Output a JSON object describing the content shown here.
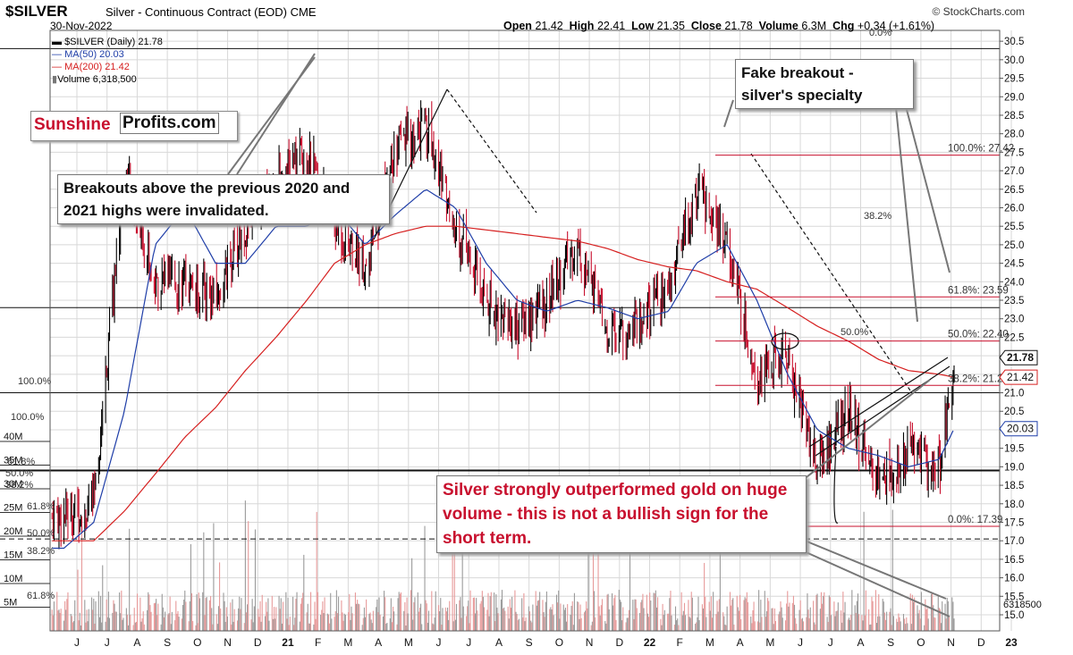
{
  "header": {
    "symbol": "$SILVER",
    "description": "Silver - Continuous Contract (EOD) CME",
    "date": "30-Nov-2022",
    "open_label": "Open",
    "open": "21.42",
    "high_label": "High",
    "high": "22.41",
    "low_label": "Low",
    "low": "21.35",
    "close_label": "Close",
    "close": "21.78",
    "volume_label": "Volume",
    "volume": "6.3M",
    "chg_label": "Chg",
    "chg": "+0.34 (+1.61%)",
    "copyright": "© StockCharts.com"
  },
  "legend": {
    "price": "$SILVER (Daily) 21.78",
    "ma50": "MA(50) 20.03",
    "ma200": "MA(200) 21.42",
    "volume": "Volume 6,318,500"
  },
  "logo": {
    "part1": "Sunshine",
    "part2": "Profits.com"
  },
  "annotations": {
    "breakouts": "Breakouts above the previous 2020 and 2021 highs were invalidated.",
    "fake_breakout": "Fake breakout - silver's specialty",
    "outperformed": "Silver strongly outperformed gold on huge volume - this is not a bullish sign for the short term."
  },
  "colors": {
    "price_up": "#000000",
    "price_down": "#c8102e",
    "ma50": "#1f3ea8",
    "ma200": "#d62020",
    "volume_up": "#9a9a9a",
    "volume_down": "#e79a9a",
    "fib_line": "#c8102e",
    "grid": "#d8d8d8"
  },
  "chart_data": {
    "type": "line",
    "title": "$SILVER Silver - Continuous Contract (EOD) CME",
    "y_right_ticks": [
      "30.5",
      "30.0",
      "29.5",
      "29.0",
      "28.5",
      "28.0",
      "27.5",
      "27.0",
      "26.5",
      "26.0",
      "25.5",
      "25.0",
      "24.5",
      "24.0",
      "23.5",
      "23.0",
      "22.5",
      "22.0",
      "21.5",
      "21.0",
      "20.5",
      "20.0",
      "19.5",
      "19.0",
      "18.5",
      "18.0",
      "17.5",
      "17.0",
      "16.5",
      "16.0",
      "15.5",
      "15.0"
    ],
    "ylim": [
      15.0,
      30.6
    ],
    "x_ticks": [
      "J",
      "J",
      "A",
      "S",
      "O",
      "N",
      "D",
      "21",
      "F",
      "M",
      "A",
      "M",
      "J",
      "J",
      "A",
      "S",
      "O",
      "N",
      "D",
      "22",
      "F",
      "M",
      "A",
      "M",
      "J",
      "J",
      "A",
      "S",
      "O",
      "N",
      "D",
      "23"
    ],
    "volume_ticks": [
      "40M",
      "35M",
      "30M",
      "25M",
      "20M",
      "15M",
      "10M",
      "5M"
    ],
    "last_price_label": "21.78",
    "ma50_label": "20.03",
    "ma200_label": "21.42",
    "volume_last_label": "6318500",
    "price_anchors": {
      "x": [
        "2020-06",
        "2020-07",
        "2020-08",
        "2020-09",
        "2020-10",
        "2020-11",
        "2020-12",
        "2021-01",
        "2021-02",
        "2021-03",
        "2021-04",
        "2021-05",
        "2021-06",
        "2021-07",
        "2021-08",
        "2021-09",
        "2021-10",
        "2021-11",
        "2021-12",
        "2022-01",
        "2022-02",
        "2022-03",
        "2022-04",
        "2022-05",
        "2022-06",
        "2022-07",
        "2022-08",
        "2022-09",
        "2022-10",
        "2022-11",
        "2022-11-30"
      ],
      "y": [
        17.7,
        18.0,
        27.0,
        24.0,
        24.0,
        23.5,
        25.5,
        26.8,
        27.5,
        25.5,
        24.5,
        27.5,
        28.2,
        25.5,
        23.5,
        22.8,
        23.5,
        25.0,
        22.5,
        23.0,
        23.8,
        26.5,
        25.0,
        21.5,
        22.0,
        19.0,
        20.5,
        18.5,
        19.5,
        19.0,
        21.78
      ]
    },
    "ma50_anchors": {
      "x": [
        "2020-06",
        "2020-07",
        "2020-08",
        "2020-09",
        "2020-10",
        "2020-11",
        "2020-12",
        "2021-01",
        "2021-02",
        "2021-03",
        "2021-04",
        "2021-05",
        "2021-06",
        "2021-07",
        "2021-08",
        "2021-09",
        "2021-10",
        "2021-11",
        "2021-12",
        "2022-01",
        "2022-02",
        "2022-03",
        "2022-04",
        "2022-05",
        "2022-06",
        "2022-07",
        "2022-08",
        "2022-09",
        "2022-10",
        "2022-11",
        "2022-11-30"
      ],
      "y": [
        16.8,
        17.5,
        20.5,
        25.0,
        26.0,
        24.5,
        24.5,
        25.5,
        25.5,
        26.0,
        25.0,
        25.8,
        26.5,
        26.0,
        24.5,
        23.5,
        23.2,
        23.5,
        23.3,
        23.0,
        23.2,
        24.5,
        25.0,
        23.5,
        21.5,
        20.0,
        19.5,
        19.3,
        19.0,
        19.2,
        20.03
      ]
    },
    "ma200_anchors": {
      "x": [
        "2020-06",
        "2020-07",
        "2020-08",
        "2020-09",
        "2020-10",
        "2020-11",
        "2020-12",
        "2021-01",
        "2021-02",
        "2021-03",
        "2021-04",
        "2021-05",
        "2021-06",
        "2021-07",
        "2021-08",
        "2021-09",
        "2021-10",
        "2021-11",
        "2021-12",
        "2022-01",
        "2022-02",
        "2022-03",
        "2022-04",
        "2022-05",
        "2022-06",
        "2022-07",
        "2022-08",
        "2022-09",
        "2022-10",
        "2022-11",
        "2022-11-30"
      ],
      "y": [
        17.0,
        17.0,
        17.8,
        18.8,
        19.8,
        20.6,
        21.6,
        22.5,
        23.5,
        24.5,
        25.0,
        25.3,
        25.5,
        25.5,
        25.4,
        25.3,
        25.2,
        25.1,
        24.9,
        24.6,
        24.4,
        24.3,
        24.0,
        23.8,
        23.3,
        22.8,
        22.4,
        21.9,
        21.6,
        21.5,
        21.42
      ]
    },
    "fib_levels": [
      {
        "label": "100.0%: 27.42",
        "value": 27.42
      },
      {
        "label": "61.8%: 23.59",
        "value": 23.59
      },
      {
        "label": "50.0%: 22.40",
        "value": 22.4
      },
      {
        "label": "38.2%: 21.2",
        "value": 21.2
      },
      {
        "label": "0.0%: 17.39",
        "value": 17.39
      }
    ],
    "other_level_labels": [
      "0.0%",
      "38.2%",
      "50.0%",
      "100.0%",
      "100.0%",
      "61.8%",
      "50.0%",
      "38.2%",
      "61.8%",
      "50.0%",
      "38.2%",
      "61.8%"
    ],
    "horizontal_levels": [
      30.3,
      23.3,
      21.0,
      18.9,
      17.05
    ]
  }
}
